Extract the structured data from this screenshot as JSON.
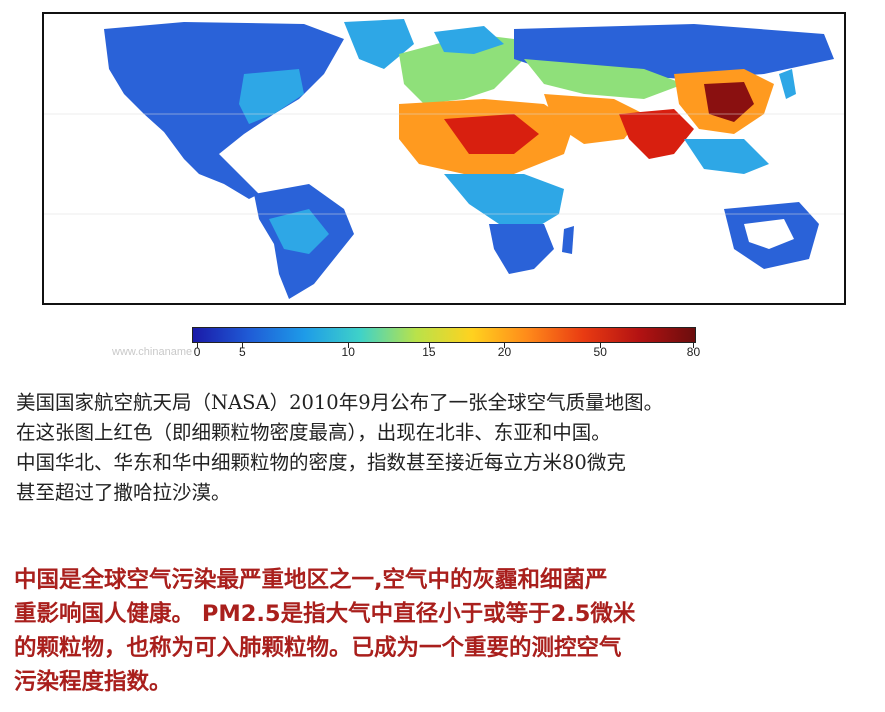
{
  "map": {
    "colorbar": {
      "ticks": [
        "0",
        "5",
        "10",
        "15",
        "20",
        "50",
        "80"
      ],
      "colors": [
        "#1a1aa8",
        "#1f5bd6",
        "#1e9be8",
        "#3fd2c8",
        "#b9e24a",
        "#ffd21f",
        "#ff8a1a",
        "#e93b12",
        "#b31212",
        "#6b0d0d"
      ]
    },
    "palette": {
      "ocean": "#ffffff",
      "low": "#2a62d8",
      "mid_low": "#2ea7e6",
      "mid": "#8fe07a",
      "high": "#ff9a1f",
      "very_high": "#d81f0f",
      "extreme": "#8a1010",
      "ice": "#ffffff"
    }
  },
  "watermark": "www.chinaname",
  "description": "美国国家航空航天局（NASA）2010年9月公布了一张全球空气质量地图。\n在这张图上红色（即细颗粒物密度最高），出现在北非、东亚和中国。\n中国华北、华东和华中细颗粒物的密度，指数甚至接近每立方米80微克\n甚至超过了撒哈拉沙漠。",
  "highlight": "中国是全球空气污染最严重地区之一,空气中的灰霾和细菌严\n重影响国人健康。 PM2.5是指大气中直径小于或等于2.5微米\n的颗粒物，也称为可入肺颗粒物。已成为一个重要的测控空气\n污染程度指数。"
}
